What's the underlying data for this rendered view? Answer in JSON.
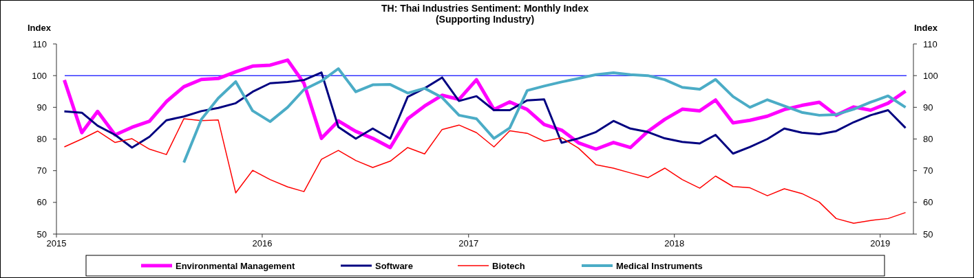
{
  "chart_data": {
    "type": "line",
    "title": "TH: Thai Industries Sentiment: Monthly Index",
    "subtitle": "(Supporting Industry)",
    "ylabel": "Index",
    "y2label": "Index",
    "x": [
      "2015-01-15",
      "2015-02-15",
      "2015-03-15",
      "2015-04-15",
      "2015-05-15",
      "2015-06-15",
      "2015-07-15",
      "2015-08-15",
      "2015-09-15",
      "2015-10-15",
      "2015-11-15",
      "2015-12-15",
      "2016-01-15",
      "2016-02-15",
      "2016-03-15",
      "2016-04-15",
      "2016-05-15",
      "2016-06-15",
      "2016-07-15",
      "2016-08-15",
      "2016-09-15",
      "2016-10-15",
      "2016-11-15",
      "2016-12-15",
      "2017-01-15",
      "2017-02-15",
      "2017-03-15",
      "2017-04-15",
      "2017-05-15",
      "2017-06-15",
      "2017-07-15",
      "2017-08-15",
      "2017-09-15",
      "2017-10-15",
      "2017-11-15",
      "2017-12-15",
      "2018-01-15",
      "2018-02-15",
      "2018-03-15",
      "2018-04-15",
      "2018-05-15",
      "2018-06-15",
      "2018-07-15",
      "2018-08-15",
      "2018-09-15",
      "2018-10-15",
      "2018-11-15",
      "2018-12-15",
      "2019-01-15",
      "2019-02-15"
    ],
    "series": [
      {
        "name": "Environmental Management",
        "color": "#ff00ff",
        "values": [
          98.6,
          82.0,
          88.7,
          81.3,
          83.7,
          85.6,
          91.8,
          96.5,
          98.8,
          99.1,
          101.2,
          103.0,
          103.3,
          104.9,
          97.6,
          80.2,
          85.7,
          82.4,
          80.2,
          77.3,
          86.4,
          90.4,
          93.8,
          92.5,
          98.7,
          89.3,
          91.7,
          89.3,
          84.6,
          82.8,
          78.8,
          76.8,
          78.9,
          77.3,
          82.4,
          86.2,
          89.4,
          88.9,
          92.3,
          85.1,
          85.9,
          87.2,
          89.3,
          90.6,
          91.6,
          87.5,
          90.1,
          89.1,
          91.3,
          95.1
        ]
      },
      {
        "name": "Software",
        "color": "#000080",
        "values": [
          88.7,
          88.3,
          84.2,
          81.3,
          77.3,
          80.7,
          85.9,
          87.1,
          88.8,
          89.8,
          91.3,
          94.9,
          97.6,
          98.0,
          98.6,
          101.0,
          83.8,
          80.1,
          83.3,
          80.1,
          93.3,
          96.0,
          99.4,
          92.0,
          93.5,
          89.1,
          89.1,
          92.2,
          92.5,
          78.8,
          80.2,
          82.2,
          85.7,
          83.3,
          82.2,
          80.2,
          79.1,
          78.6,
          81.3,
          75.4,
          77.5,
          80.0,
          83.3,
          82.0,
          81.5,
          82.5,
          85.3,
          87.5,
          89.1,
          83.5
        ]
      },
      {
        "name": "Biotech",
        "color": "#ff0000",
        "values": [
          77.5,
          80.0,
          82.5,
          78.9,
          80.1,
          76.8,
          75.1,
          86.4,
          85.8,
          86.0,
          63.0,
          70.1,
          67.2,
          64.9,
          63.4,
          73.6,
          76.4,
          73.2,
          71.0,
          73.0,
          77.3,
          75.3,
          83.0,
          84.4,
          82.0,
          77.5,
          82.6,
          81.8,
          79.3,
          80.4,
          77.1,
          71.9,
          70.8,
          69.3,
          67.8,
          70.8,
          67.2,
          64.5,
          68.3,
          65.0,
          64.6,
          62.1,
          64.3,
          62.8,
          60.1,
          54.9,
          53.4,
          54.3,
          54.9,
          56.8
        ]
      },
      {
        "name": "Medical Instruments",
        "color": "#4bacc6",
        "values": [
          null,
          null,
          null,
          null,
          null,
          null,
          null,
          72.6,
          86.2,
          92.9,
          98.1,
          88.9,
          85.5,
          90.0,
          95.6,
          98.3,
          102.2,
          94.9,
          97.1,
          97.2,
          94.5,
          96.0,
          93.1,
          87.5,
          86.4,
          80.2,
          83.5,
          95.3,
          96.7,
          98.0,
          99.1,
          100.3,
          100.9,
          100.3,
          100.0,
          98.7,
          96.3,
          95.7,
          98.8,
          93.4,
          90.0,
          92.4,
          90.4,
          88.4,
          87.5,
          87.7,
          89.4,
          91.6,
          93.6,
          90.0
        ]
      }
    ],
    "xlim": [
      "2015-01-01",
      "2019-03-01"
    ],
    "xticks": [
      {
        "value": "2015-01-01",
        "label": "2015"
      },
      {
        "value": "2016-01-01",
        "label": "2016"
      },
      {
        "value": "2017-01-01",
        "label": "2017"
      },
      {
        "value": "2018-01-01",
        "label": "2018"
      },
      {
        "value": "2019-01-01",
        "label": "2019"
      }
    ],
    "ylim": [
      50,
      110
    ],
    "yticks": [
      50,
      60,
      70,
      80,
      90,
      100,
      110
    ],
    "y2lim": [
      50,
      110
    ],
    "y2ticks": [
      50,
      60,
      70,
      80,
      90,
      100,
      110
    ],
    "ref_lines": [
      {
        "axis": "y",
        "value": 100,
        "color": "#3333ff"
      }
    ],
    "legend": "bottom",
    "grid": false
  }
}
